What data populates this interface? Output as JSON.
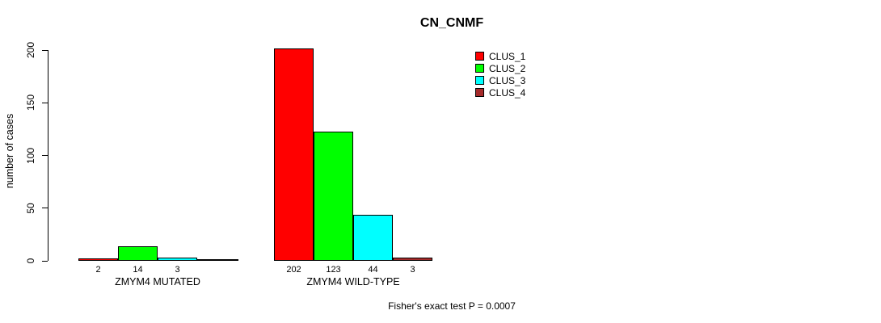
{
  "chart_data": {
    "type": "bar",
    "title": "CN_CNMF",
    "ylabel": "number of cases",
    "xlabel": "",
    "ylim": [
      0,
      200
    ],
    "yticks": [
      0,
      50,
      100,
      150,
      200
    ],
    "grid": false,
    "legend_position": "top-right",
    "series_names": [
      "CLUS_1",
      "CLUS_2",
      "CLUS_3",
      "CLUS_4"
    ],
    "series_colors": [
      "#FF0000",
      "#00FF00",
      "#00FFFF",
      "#A52A2A"
    ],
    "groups": [
      {
        "label": "ZMYM4 MUTATED",
        "values": [
          2,
          14,
          3,
          0
        ],
        "bar_labels": [
          "2",
          "14",
          "3",
          ""
        ]
      },
      {
        "label": "ZMYM4 WILD-TYPE",
        "values": [
          202,
          123,
          44,
          3
        ],
        "bar_labels": [
          "202",
          "123",
          "44",
          "3"
        ]
      }
    ],
    "annotation": "Fisher's exact test P = 0.0007"
  }
}
